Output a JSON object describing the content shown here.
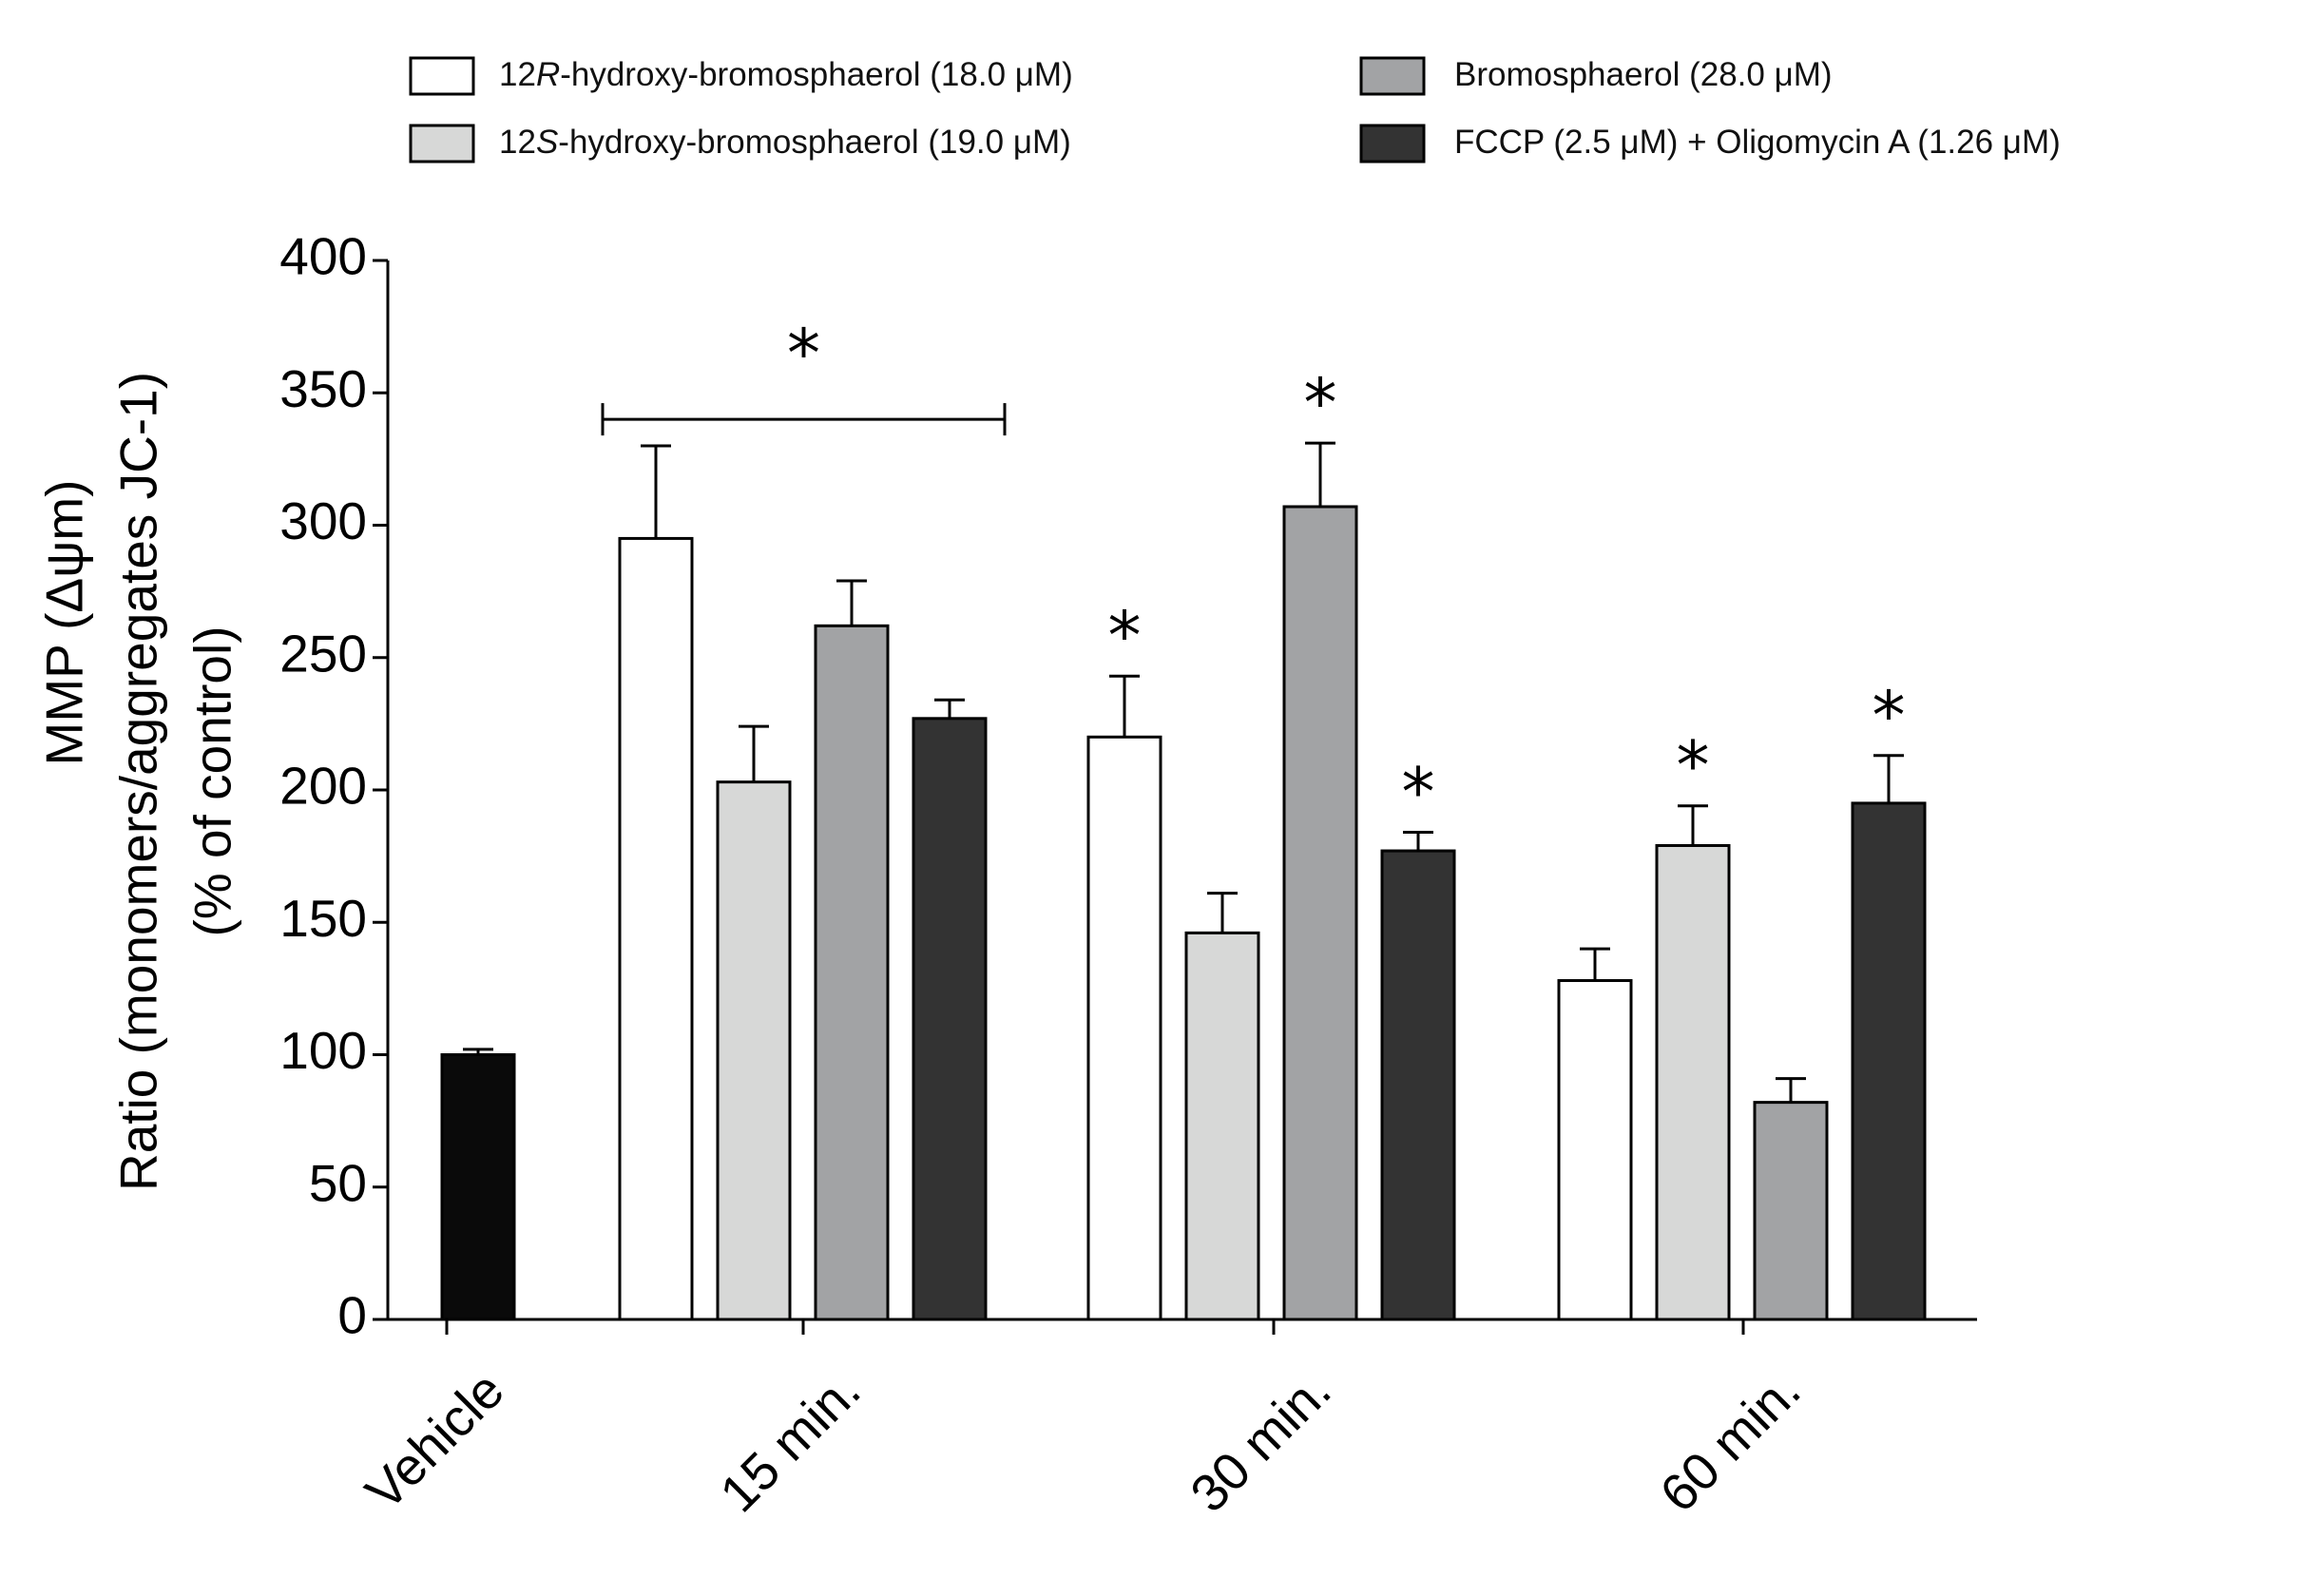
{
  "chart_data": {
    "type": "bar",
    "title": "",
    "ylabel_line1": "MMP (Δψm)",
    "ylabel_line2": "Ratio (monomers/aggregates  JC-1)",
    "ylabel_line3": "(% of control)",
    "xlabel": "",
    "ylim": [
      0,
      400
    ],
    "yticks": [
      "0",
      "50",
      "100",
      "150",
      "200",
      "250",
      "300",
      "350",
      "400"
    ],
    "categories": [
      "Vehicle",
      "15 min.",
      "30 min.",
      "60 min."
    ],
    "colors": {
      "vehicle": "#0a0a0a",
      "s1": "#ffffff",
      "s2": "#d7d8d7",
      "s3": "#a2a3a5",
      "s4": "#333333",
      "axis": "#000000"
    },
    "vehicle": {
      "name": "Vehicle",
      "value": 100,
      "error": 2
    },
    "series": [
      {
        "name": "12R-hydroxy-bromosphaerol (18.0 μM)",
        "values": [
          null,
          295,
          220,
          128
        ],
        "errors": [
          null,
          35,
          23,
          12
        ],
        "stars": [
          false,
          false,
          true,
          false
        ]
      },
      {
        "name": "12S-hydroxy-bromosphaerol (19.0 μM)",
        "values": [
          null,
          203,
          146,
          179
        ],
        "errors": [
          null,
          21,
          15,
          15
        ],
        "stars": [
          false,
          false,
          false,
          true
        ]
      },
      {
        "name": "Bromosphaerol (28.0 μM)",
        "values": [
          null,
          262,
          307,
          82
        ],
        "errors": [
          null,
          17,
          24,
          9
        ],
        "stars": [
          false,
          false,
          true,
          false
        ]
      },
      {
        "name": "FCCP (2.5 μM) + Oligomycin A (1.26 μM)",
        "values": [
          null,
          227,
          177,
          195
        ],
        "errors": [
          null,
          7,
          7,
          18
        ],
        "stars": [
          false,
          false,
          true,
          true
        ]
      }
    ],
    "legend": {
      "placement": "top",
      "entries": [
        {
          "prefix": "12",
          "italic": "R",
          "suffix": "-hydroxy-bromosphaerol (18.0 μM)"
        },
        {
          "prefix": "12",
          "italic": "S",
          "suffix": "-hydroxy-bromosphaerol (19.0 μM)"
        },
        {
          "prefix": "",
          "italic": "",
          "suffix": "Bromosphaerol (28.0 μM)"
        },
        {
          "prefix": "",
          "italic": "",
          "suffix": "FCCP (2.5 μM) + Oligomycin A (1.26 μM)"
        }
      ]
    },
    "bracket": {
      "label": "*",
      "from_category": "15 min.",
      "value": 340
    },
    "star_symbol": "*"
  }
}
